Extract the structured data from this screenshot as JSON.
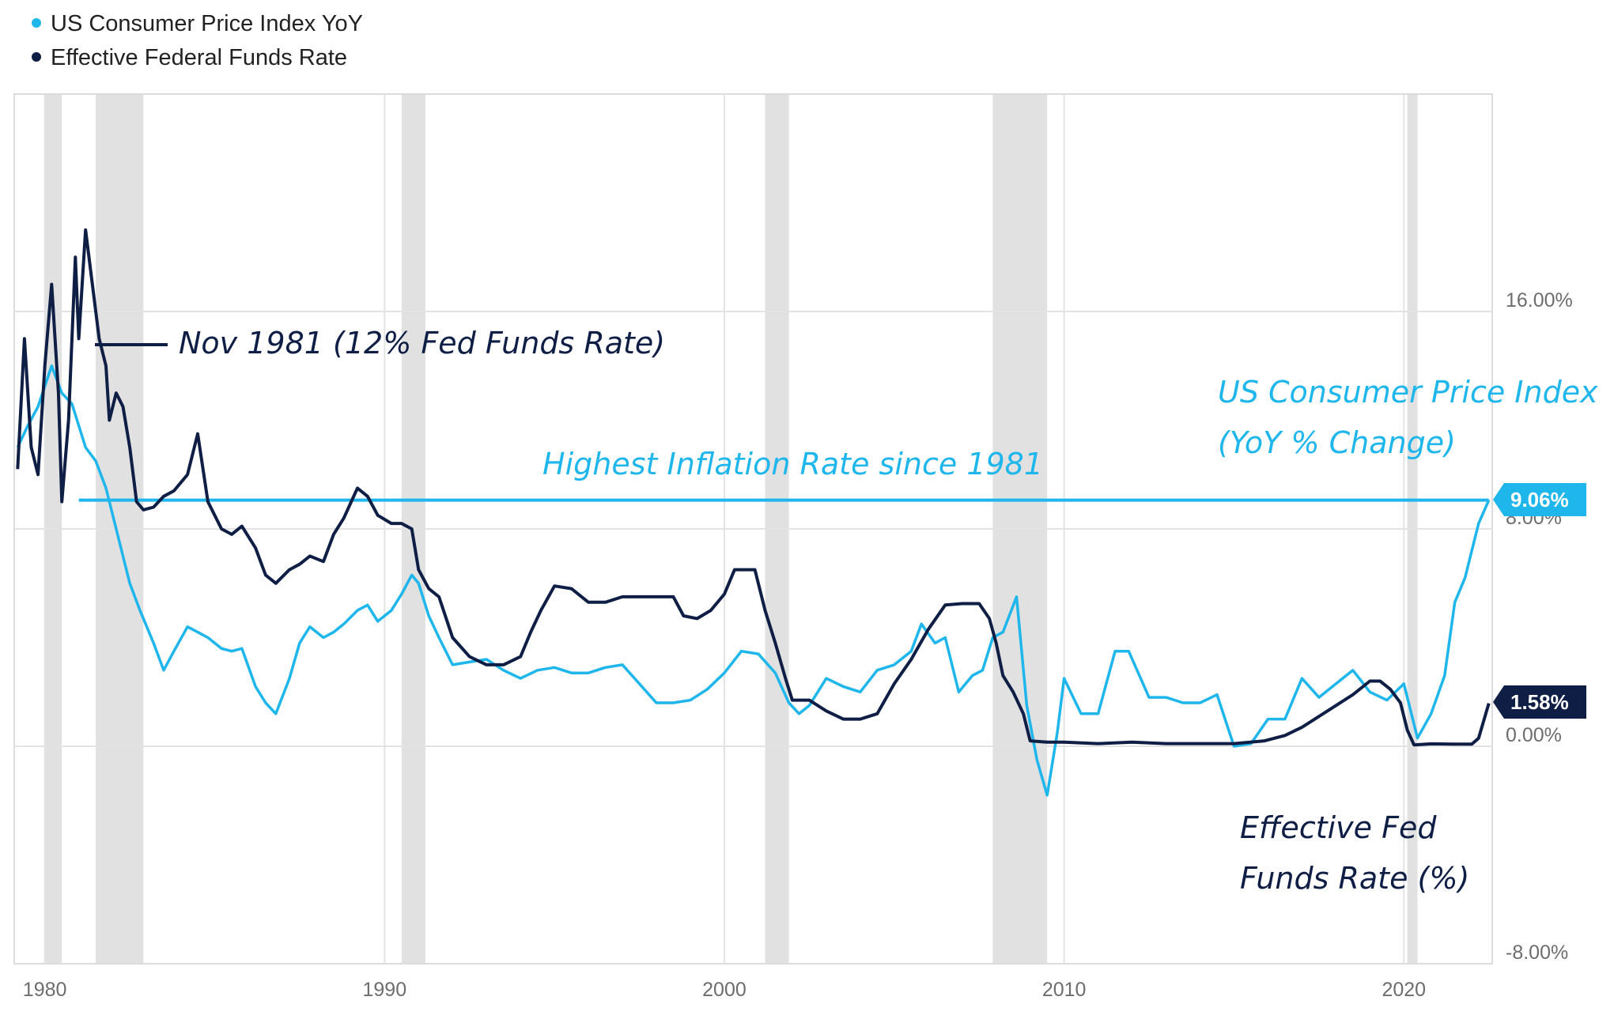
{
  "legend": [
    {
      "label": "US Consumer Price Index YoY",
      "color": "#1fb6ec"
    },
    {
      "label": "Effective Federal Funds Rate",
      "color": "#0f1e45"
    }
  ],
  "annotations": {
    "nov1981": "Nov 1981 (12% Fed Funds Rate)",
    "highest": "Highest Inflation Rate since 1981",
    "cpi_line1": "US Consumer Price Index",
    "cpi_line2": "(YoY % Change)",
    "fed_line1": "Effective Fed",
    "fed_line2": "Funds Rate (%)"
  },
  "badges": {
    "cpi_last": "9.06%",
    "fed_last": "1.58%"
  },
  "colors": {
    "cpi": "#1fb6ec",
    "fed": "#0f1e45",
    "recession": "#e1e1e1",
    "grid": "#e3e3e3"
  },
  "chart_data": {
    "type": "line",
    "title": "",
    "xlabel": "",
    "ylabel": "",
    "xlim": [
      1979.1,
      2022.6
    ],
    "ylim": [
      -8,
      24
    ],
    "x_ticks": [
      {
        "value": 1980,
        "label": "1980"
      },
      {
        "value": 1990,
        "label": "1990"
      },
      {
        "value": 2000,
        "label": "2000"
      },
      {
        "value": 2010,
        "label": "2010"
      },
      {
        "value": 2020,
        "label": "2020"
      }
    ],
    "y_ticks": [
      {
        "value": 16,
        "label": "16.00%"
      },
      {
        "value": 8,
        "label": "8.00%"
      },
      {
        "value": 0,
        "label": "0.00%"
      },
      {
        "value": -8,
        "label": "-8.00%"
      }
    ],
    "recessions": [
      [
        1980.0,
        1980.5
      ],
      [
        1981.5,
        1982.9
      ],
      [
        1990.5,
        1991.2
      ],
      [
        2001.2,
        2001.9
      ],
      [
        2007.9,
        2009.5
      ],
      [
        2020.1,
        2020.4
      ]
    ],
    "reference_line": {
      "value": 9.06,
      "from": 1981.0,
      "to": 2022.5
    },
    "series": [
      {
        "name": "US Consumer Price Index YoY",
        "x": [
          1979.2,
          1979.5,
          1979.8,
          1980.2,
          1980.5,
          1980.8,
          1981.2,
          1981.5,
          1981.8,
          1982.2,
          1982.5,
          1982.8,
          1983.2,
          1983.5,
          1983.8,
          1984.2,
          1984.5,
          1984.8,
          1985.2,
          1985.5,
          1985.8,
          1986.2,
          1986.5,
          1986.8,
          1987.2,
          1987.5,
          1987.8,
          1988.2,
          1988.5,
          1988.8,
          1989.2,
          1989.5,
          1989.8,
          1990.2,
          1990.5,
          1990.8,
          1991.0,
          1991.3,
          1991.6,
          1992.0,
          1992.5,
          1993.0,
          1993.5,
          1994.0,
          1994.5,
          1995.0,
          1995.5,
          1996.0,
          1996.5,
          1997.0,
          1997.5,
          1998.0,
          1998.5,
          1999.0,
          1999.5,
          2000.0,
          2000.5,
          2001.0,
          2001.5,
          2001.9,
          2002.2,
          2002.5,
          2003.0,
          2003.5,
          2004.0,
          2004.5,
          2005.0,
          2005.5,
          2005.8,
          2006.2,
          2006.5,
          2006.9,
          2007.3,
          2007.6,
          2007.9,
          2008.2,
          2008.6,
          2008.9,
          2009.2,
          2009.5,
          2009.8,
          2010.0,
          2010.5,
          2011.0,
          2011.5,
          2011.9,
          2012.5,
          2013.0,
          2013.5,
          2014.0,
          2014.5,
          2015.0,
          2015.5,
          2016.0,
          2016.5,
          2017.0,
          2017.5,
          2018.0,
          2018.5,
          2019.0,
          2019.5,
          2020.0,
          2020.4,
          2020.8,
          2021.2,
          2021.5,
          2021.8,
          2022.2,
          2022.5
        ],
        "values": [
          11.0,
          11.8,
          12.5,
          14.0,
          13.0,
          12.6,
          11.0,
          10.5,
          9.5,
          7.5,
          6.0,
          5.0,
          3.8,
          2.8,
          3.5,
          4.4,
          4.2,
          4.0,
          3.6,
          3.5,
          3.6,
          2.2,
          1.6,
          1.2,
          2.5,
          3.8,
          4.4,
          4.0,
          4.2,
          4.5,
          5.0,
          5.2,
          4.6,
          5.0,
          5.6,
          6.3,
          6.0,
          4.8,
          4.0,
          3.0,
          3.1,
          3.2,
          2.8,
          2.5,
          2.8,
          2.9,
          2.7,
          2.7,
          2.9,
          3.0,
          2.3,
          1.6,
          1.6,
          1.7,
          2.1,
          2.7,
          3.5,
          3.4,
          2.7,
          1.6,
          1.2,
          1.5,
          2.5,
          2.2,
          2.0,
          2.8,
          3.0,
          3.5,
          4.5,
          3.8,
          4.0,
          2.0,
          2.6,
          2.8,
          4.0,
          4.2,
          5.5,
          1.5,
          -0.5,
          -1.8,
          0.5,
          2.5,
          1.2,
          1.2,
          3.5,
          3.5,
          1.8,
          1.8,
          1.6,
          1.6,
          1.9,
          0.0,
          0.1,
          1.0,
          1.0,
          2.5,
          1.8,
          2.3,
          2.8,
          2.0,
          1.7,
          2.3,
          0.3,
          1.2,
          2.6,
          5.3,
          6.2,
          8.2,
          9.06
        ]
      },
      {
        "name": "Effective Federal Funds Rate",
        "x": [
          1979.2,
          1979.4,
          1979.6,
          1979.8,
          1980.0,
          1980.2,
          1980.4,
          1980.5,
          1980.7,
          1980.9,
          1981.0,
          1981.2,
          1981.4,
          1981.6,
          1981.8,
          1981.9,
          1982.1,
          1982.3,
          1982.5,
          1982.7,
          1982.9,
          1983.2,
          1983.5,
          1983.8,
          1984.2,
          1984.5,
          1984.8,
          1985.2,
          1985.5,
          1985.8,
          1986.2,
          1986.5,
          1986.8,
          1987.2,
          1987.5,
          1987.8,
          1988.2,
          1988.5,
          1988.8,
          1989.2,
          1989.5,
          1989.8,
          1990.2,
          1990.5,
          1990.8,
          1991.0,
          1991.3,
          1991.6,
          1992.0,
          1992.5,
          1993.0,
          1993.5,
          1994.0,
          1994.3,
          1994.6,
          1995.0,
          1995.5,
          1996.0,
          1996.5,
          1997.0,
          1997.5,
          1998.0,
          1998.5,
          1998.8,
          1999.2,
          1999.6,
          2000.0,
          2000.3,
          2000.6,
          2000.9,
          2001.2,
          2001.5,
          2001.8,
          2002.0,
          2002.5,
          2003.0,
          2003.5,
          2004.0,
          2004.5,
          2005.0,
          2005.5,
          2006.0,
          2006.5,
          2007.0,
          2007.5,
          2007.8,
          2008.0,
          2008.2,
          2008.5,
          2008.8,
          2009.0,
          2009.5,
          2010.0,
          2011.0,
          2012.0,
          2013.0,
          2014.0,
          2015.0,
          2015.9,
          2016.5,
          2017.0,
          2017.5,
          2018.0,
          2018.5,
          2019.0,
          2019.3,
          2019.6,
          2019.9,
          2020.1,
          2020.3,
          2020.8,
          2021.5,
          2022.0,
          2022.2,
          2022.5
        ],
        "values": [
          10.2,
          15.0,
          11.0,
          10.0,
          14.0,
          17.0,
          13.0,
          9.0,
          12.0,
          18.0,
          15.0,
          19.0,
          17.0,
          15.0,
          14.0,
          12.0,
          13.0,
          12.5,
          11.0,
          9.0,
          8.7,
          8.8,
          9.2,
          9.4,
          10.0,
          11.5,
          9.0,
          8.0,
          7.8,
          8.1,
          7.3,
          6.3,
          6.0,
          6.5,
          6.7,
          7.0,
          6.8,
          7.8,
          8.4,
          9.5,
          9.2,
          8.5,
          8.2,
          8.2,
          8.0,
          6.5,
          5.8,
          5.5,
          4.0,
          3.3,
          3.0,
          3.0,
          3.3,
          4.2,
          5.0,
          5.9,
          5.8,
          5.3,
          5.3,
          5.5,
          5.5,
          5.5,
          5.5,
          4.8,
          4.7,
          5.0,
          5.6,
          6.5,
          6.5,
          6.5,
          5.0,
          3.8,
          2.5,
          1.7,
          1.7,
          1.3,
          1.0,
          1.0,
          1.2,
          2.3,
          3.2,
          4.3,
          5.2,
          5.25,
          5.25,
          4.7,
          3.8,
          2.6,
          2.0,
          1.2,
          0.2,
          0.15,
          0.15,
          0.1,
          0.15,
          0.1,
          0.1,
          0.1,
          0.2,
          0.4,
          0.7,
          1.1,
          1.5,
          1.9,
          2.4,
          2.4,
          2.1,
          1.6,
          0.6,
          0.05,
          0.09,
          0.08,
          0.08,
          0.3,
          1.58
        ]
      }
    ]
  }
}
